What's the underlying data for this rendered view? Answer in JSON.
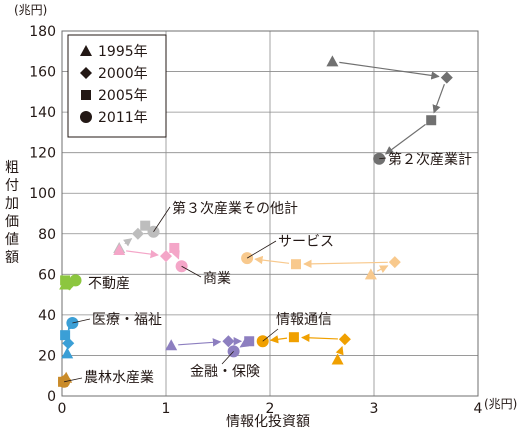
{
  "chart_data": {
    "type": "scatter",
    "units": {
      "x": "(兆円)",
      "y": "(兆円)"
    },
    "xlabel": "情報化投資額",
    "ylabel": "粗付加価値額",
    "xlim": [
      0,
      4
    ],
    "ylim": [
      0,
      180
    ],
    "xticks": [
      "0",
      "1",
      "2",
      "3",
      "4"
    ],
    "yticks": [
      "0",
      "20",
      "40",
      "60",
      "80",
      "100",
      "120",
      "140",
      "160",
      "180"
    ],
    "grid": true,
    "legend_position": "top-left",
    "legend": [
      {
        "year": "1995年",
        "marker": "triangle"
      },
      {
        "year": "2000年",
        "marker": "diamond"
      },
      {
        "year": "2005年",
        "marker": "square"
      },
      {
        "year": "2011年",
        "marker": "circle"
      }
    ],
    "series": [
      {
        "name": "第２次産業計",
        "color": "#707070",
        "points": [
          [
            2.6,
            165
          ],
          [
            3.7,
            157
          ],
          [
            3.55,
            136
          ],
          [
            3.05,
            117
          ]
        ]
      },
      {
        "name": "第３次産業その他計",
        "color": "#bdbdbd",
        "points": [
          [
            0.55,
            73
          ],
          [
            0.73,
            80
          ],
          [
            0.8,
            84
          ],
          [
            0.88,
            81
          ]
        ]
      },
      {
        "name": "サービス",
        "color": "#f8c98d",
        "points": [
          [
            2.97,
            60
          ],
          [
            3.2,
            66
          ],
          [
            2.25,
            65
          ],
          [
            1.78,
            68
          ]
        ]
      },
      {
        "name": "商業",
        "color": "#f4a6c8",
        "points": [
          [
            0.55,
            72
          ],
          [
            1.0,
            69
          ],
          [
            1.08,
            73
          ],
          [
            1.15,
            64
          ]
        ]
      },
      {
        "name": "不動産",
        "color": "#8cc63f",
        "points": [
          [
            0.03,
            55
          ],
          [
            0.07,
            55
          ],
          [
            0.03,
            57
          ],
          [
            0.13,
            57
          ]
        ]
      },
      {
        "name": "医療・福祉",
        "color": "#3b9fd6",
        "points": [
          [
            0.05,
            21
          ],
          [
            0.06,
            26
          ],
          [
            0.03,
            30
          ],
          [
            0.1,
            36
          ]
        ]
      },
      {
        "name": "情報通信",
        "color": "#f0a000",
        "points": [
          [
            2.65,
            18
          ],
          [
            2.72,
            28
          ],
          [
            2.23,
            29
          ],
          [
            1.93,
            27
          ]
        ]
      },
      {
        "name": "金融・保険",
        "color": "#8d7fc0",
        "points": [
          [
            1.05,
            25
          ],
          [
            1.6,
            27
          ],
          [
            1.8,
            27
          ],
          [
            1.65,
            22
          ]
        ]
      },
      {
        "name": "農林水産業",
        "color": "#c98b2a",
        "points": [
          [
            0.04,
            9
          ],
          [
            0.03,
            8
          ],
          [
            0.01,
            7
          ],
          [
            0.02,
            7
          ]
        ]
      }
    ]
  }
}
